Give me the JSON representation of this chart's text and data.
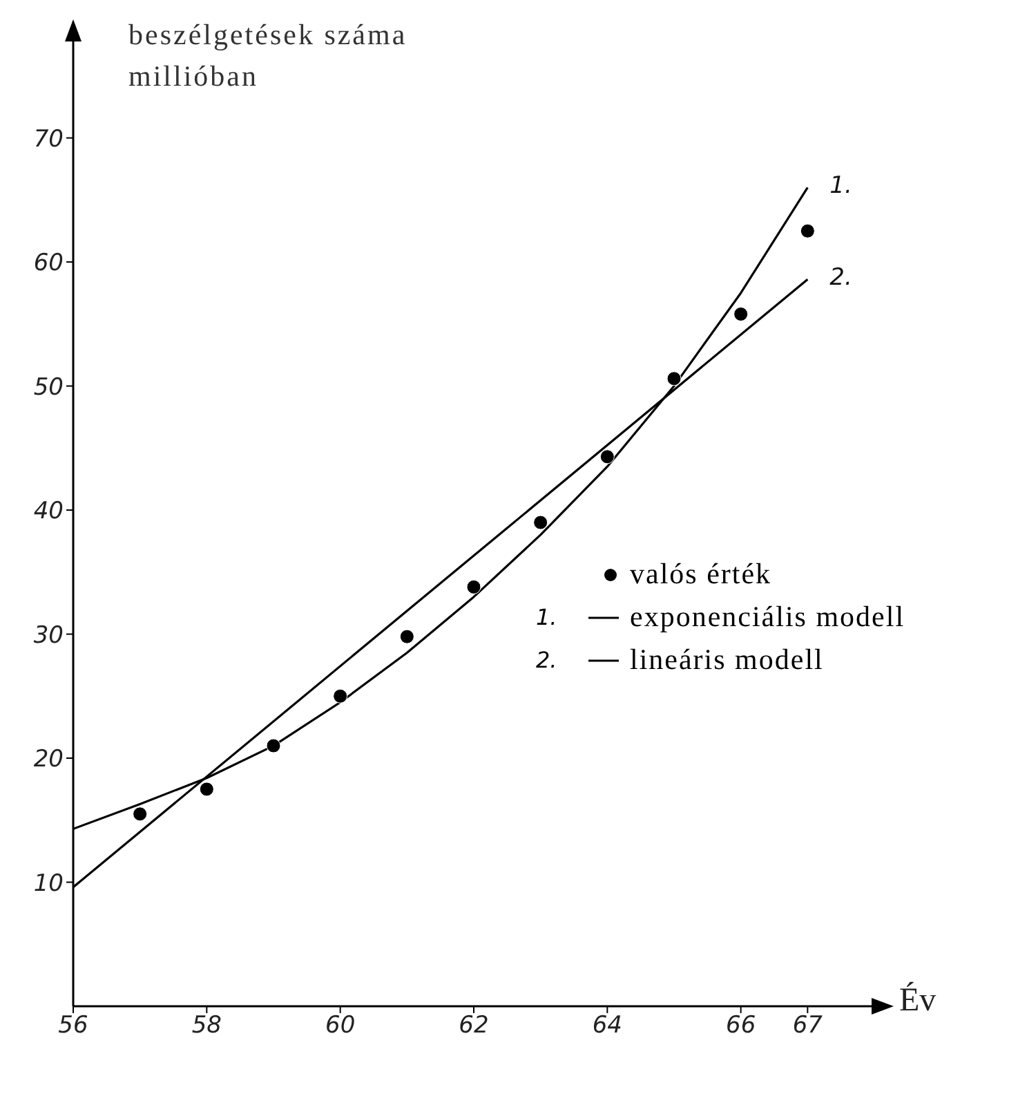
{
  "chart_data": {
    "type": "scatter",
    "ylabel": "beszélgetések száma millióban",
    "xlabel": "Év",
    "xlim": [
      56,
      68
    ],
    "xticks": [
      56,
      58,
      60,
      62,
      64,
      66,
      67
    ],
    "ylim": [
      0,
      78
    ],
    "yticks": [
      10,
      20,
      30,
      40,
      50,
      60,
      70
    ],
    "grid": false,
    "legend": "right",
    "marker": "circle",
    "annotations": [
      {
        "text": "1.",
        "x": 67,
        "y": 66
      },
      {
        "text": "2.",
        "x": 67,
        "y": 58.6
      }
    ],
    "series": [
      {
        "name": "valós érték",
        "color": "#000000",
        "x": [
          57,
          58,
          59,
          60,
          61,
          62,
          63,
          64,
          65,
          66,
          67
        ],
        "values": [
          15.5,
          17.5,
          21,
          25,
          29.8,
          33.8,
          39,
          44.3,
          50.6,
          55.8,
          62.5
        ]
      },
      {
        "name": "exponenciális modell",
        "type": "line",
        "color": "#000000",
        "marker": "none",
        "line_style": "solid",
        "x": [
          56,
          57,
          58,
          59,
          60,
          61,
          62,
          63,
          64,
          65,
          66,
          67
        ],
        "values": [
          14.3,
          16.3,
          18.4,
          21,
          24.5,
          28.5,
          33,
          38,
          43.5,
          50,
          57.5,
          66
        ]
      },
      {
        "name": "lineáris modell",
        "type": "line",
        "color": "#000000",
        "marker": "none",
        "line_style": "solid",
        "x": [
          56,
          67
        ],
        "values": [
          9.6,
          58.6
        ]
      }
    ]
  }
}
